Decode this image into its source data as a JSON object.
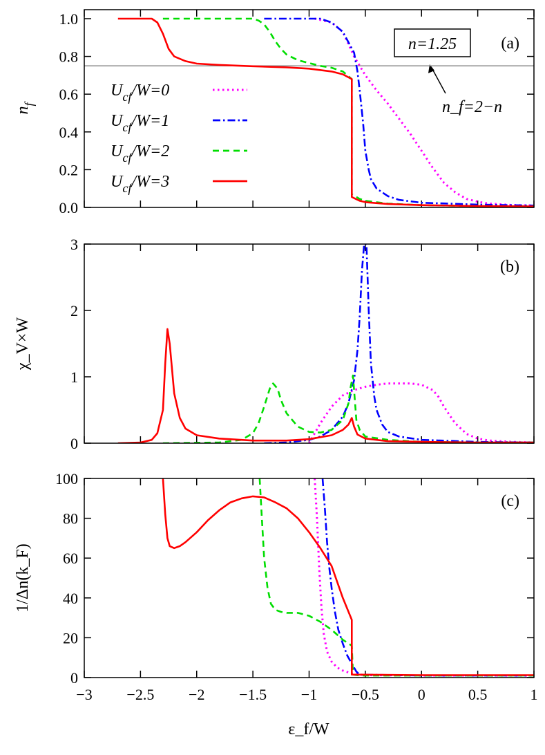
{
  "chart_data": {
    "type": "line",
    "shared_x": {
      "xlabel": "ε_f/W",
      "xlim": [
        -3,
        1
      ],
      "xticks": [
        -3,
        -2.5,
        -2,
        -1.5,
        -1,
        -0.5,
        0,
        0.5,
        1
      ],
      "xtick_labels": [
        "−3",
        "−2.5",
        "−2",
        "−1.5",
        "−1",
        "−0.5",
        "0",
        "0.5",
        "1"
      ]
    },
    "series_styles": [
      {
        "name": "U_cf/W=0",
        "color": "#ff00ff",
        "style": "dotted"
      },
      {
        "name": "U_cf/W=1",
        "color": "#0000ff",
        "style": "dash-dot"
      },
      {
        "name": "U_cf/W=2",
        "color": "#00dd00",
        "style": "dashed"
      },
      {
        "name": "U_cf/W=3",
        "color": "#ff0000",
        "style": "solid"
      }
    ],
    "legend_placement": "left",
    "panels": [
      {
        "panel_label": "(a)",
        "ylabel": "n_f",
        "ylim": [
          0,
          1
        ],
        "yticks": [
          0,
          0.2,
          0.4,
          0.6,
          0.8,
          1.0
        ],
        "ytick_labels": [
          "0.0",
          "0.2",
          "0.4",
          "0.6",
          "0.8",
          "1.0"
        ],
        "annotations": {
          "box": "n=1.25",
          "arrow_text": "n_f=2−n",
          "hline": 0.75
        },
        "series": [
          {
            "x": [
              -0.95,
              -0.8,
              -0.7,
              -0.6,
              -0.5,
              -0.4,
              -0.3,
              -0.2,
              -0.1,
              0,
              0.1,
              0.2,
              0.3,
              0.4,
              0.5,
              0.6,
              0.8,
              1.0
            ],
            "y": [
              1.0,
              0.98,
              0.93,
              0.8,
              0.7,
              0.62,
              0.55,
              0.47,
              0.39,
              0.3,
              0.21,
              0.13,
              0.08,
              0.045,
              0.03,
              0.02,
              0.013,
              0.01
            ]
          },
          {
            "x": [
              -1.4,
              -0.9,
              -0.8,
              -0.7,
              -0.6,
              -0.57,
              -0.55,
              -0.52,
              -0.5,
              -0.47,
              -0.45,
              -0.4,
              -0.3,
              -0.2,
              0,
              0.5,
              1.0
            ],
            "y": [
              1.0,
              1.0,
              0.98,
              0.93,
              0.82,
              0.72,
              0.62,
              0.45,
              0.3,
              0.2,
              0.15,
              0.1,
              0.06,
              0.04,
              0.025,
              0.015,
              0.01
            ]
          },
          {
            "x": [
              -2.3,
              -1.5,
              -1.45,
              -1.4,
              -1.35,
              -1.3,
              -1.25,
              -1.2,
              -1.1,
              -1.0,
              -0.9,
              -0.8,
              -0.7,
              -0.62,
              -0.62,
              -0.55,
              -0.5,
              -0.3,
              0,
              0.5,
              1.0
            ],
            "y": [
              1.0,
              1.0,
              0.99,
              0.97,
              0.93,
              0.88,
              0.84,
              0.81,
              0.78,
              0.765,
              0.75,
              0.74,
              0.72,
              0.68,
              0.07,
              0.045,
              0.035,
              0.02,
              0.012,
              0.007,
              0.005
            ]
          },
          {
            "x": [
              -2.7,
              -2.4,
              -2.35,
              -2.3,
              -2.25,
              -2.2,
              -2.1,
              -2.0,
              -1.8,
              -1.5,
              -1.2,
              -1.0,
              -0.8,
              -0.7,
              -0.62,
              -0.62,
              -0.55,
              -0.5,
              -0.3,
              0,
              0.5,
              1.0
            ],
            "y": [
              1.0,
              1.0,
              0.98,
              0.92,
              0.84,
              0.8,
              0.775,
              0.762,
              0.755,
              0.748,
              0.742,
              0.735,
              0.72,
              0.705,
              0.68,
              0.055,
              0.035,
              0.028,
              0.018,
              0.012,
              0.007,
              0.005
            ]
          }
        ]
      },
      {
        "panel_label": "(b)",
        "ylabel": "χ_V×W",
        "ylim": [
          0,
          3
        ],
        "yticks": [
          0,
          1,
          2,
          3
        ],
        "ytick_labels": [
          "0",
          "1",
          "2",
          "3"
        ],
        "series": [
          {
            "x": [
              -1.0,
              -0.9,
              -0.8,
              -0.7,
              -0.6,
              -0.5,
              -0.4,
              -0.3,
              -0.2,
              -0.1,
              0,
              0.1,
              0.15,
              0.2,
              0.25,
              0.3,
              0.4,
              0.5,
              0.6,
              0.8,
              1.0
            ],
            "y": [
              0.0,
              0.3,
              0.55,
              0.72,
              0.8,
              0.85,
              0.88,
              0.9,
              0.9,
              0.9,
              0.88,
              0.8,
              0.7,
              0.55,
              0.42,
              0.3,
              0.14,
              0.07,
              0.04,
              0.02,
              0.01
            ]
          },
          {
            "x": [
              -1.4,
              -1.2,
              -1.0,
              -0.9,
              -0.8,
              -0.7,
              -0.65,
              -0.6,
              -0.57,
              -0.55,
              -0.53,
              -0.51,
              -0.49,
              -0.47,
              -0.45,
              -0.42,
              -0.4,
              -0.35,
              -0.3,
              -0.2,
              0,
              0.5,
              1.0
            ],
            "y": [
              0.0,
              0.01,
              0.05,
              0.1,
              0.2,
              0.4,
              0.6,
              0.95,
              1.4,
              1.9,
              2.6,
              3.0,
              3.0,
              2.0,
              1.2,
              0.7,
              0.5,
              0.28,
              0.17,
              0.1,
              0.05,
              0.02,
              0.01
            ]
          },
          {
            "x": [
              -2.3,
              -1.8,
              -1.6,
              -1.5,
              -1.45,
              -1.4,
              -1.35,
              -1.32,
              -1.28,
              -1.25,
              -1.2,
              -1.1,
              -1.0,
              -0.9,
              -0.8,
              -0.7,
              -0.65,
              -0.63,
              -0.61,
              -0.58,
              -0.55,
              -0.5,
              -0.3,
              0,
              0.5,
              1.0
            ],
            "y": [
              0.0,
              0.01,
              0.05,
              0.15,
              0.3,
              0.55,
              0.82,
              0.9,
              0.82,
              0.65,
              0.45,
              0.25,
              0.17,
              0.16,
              0.2,
              0.35,
              0.6,
              0.85,
              1.02,
              0.35,
              0.2,
              0.1,
              0.05,
              0.02,
              0.01,
              0.01
            ]
          },
          {
            "x": [
              -2.7,
              -2.5,
              -2.4,
              -2.35,
              -2.3,
              -2.28,
              -2.26,
              -2.24,
              -2.2,
              -2.15,
              -2.1,
              -2.0,
              -1.8,
              -1.5,
              -1.2,
              -1.0,
              -0.8,
              -0.7,
              -0.65,
              -0.62,
              -0.6,
              -0.57,
              -0.5,
              -0.3,
              0,
              0.5,
              1.0
            ],
            "y": [
              0.0,
              0.01,
              0.05,
              0.15,
              0.5,
              1.2,
              1.72,
              1.5,
              0.75,
              0.38,
              0.22,
              0.12,
              0.07,
              0.04,
              0.04,
              0.06,
              0.12,
              0.2,
              0.28,
              0.38,
              0.25,
              0.13,
              0.07,
              0.03,
              0.02,
              0.01,
              0.01
            ]
          }
        ]
      },
      {
        "panel_label": "(c)",
        "ylabel": "1/Δn(k_F)",
        "ylim": [
          0,
          100
        ],
        "yticks": [
          0,
          20,
          40,
          60,
          80,
          100
        ],
        "ytick_labels": [
          "0",
          "20",
          "40",
          "60",
          "80",
          "100"
        ],
        "series": [
          {
            "x": [
              -0.95,
              -0.93,
              -0.91,
              -0.89,
              -0.87,
              -0.84,
              -0.8,
              -0.75,
              -0.7,
              -0.62,
              -0.55,
              -0.5,
              0,
              1.0
            ],
            "y": [
              100,
              80,
              55,
              35,
              22,
              13,
              8,
              5,
              3.5,
              2,
              1.5,
              1.2,
              1,
              1
            ]
          },
          {
            "x": [
              -0.88,
              -0.86,
              -0.84,
              -0.82,
              -0.8,
              -0.77,
              -0.74,
              -0.7,
              -0.66,
              -0.62,
              -0.58,
              -0.55,
              0,
              1.0
            ],
            "y": [
              100,
              85,
              68,
              55,
              45,
              33,
              24,
              17,
              11,
              7,
              3,
              1.5,
              1,
              1
            ]
          },
          {
            "x": [
              -1.44,
              -1.42,
              -1.4,
              -1.37,
              -1.34,
              -1.3,
              -1.25,
              -1.2,
              -1.1,
              -1.0,
              -0.9,
              -0.8,
              -0.7,
              -0.62,
              -0.61,
              -0.55,
              0,
              1.0
            ],
            "y": [
              100,
              80,
              60,
              45,
              37,
              34,
              33,
              32.5,
              32.5,
              31,
              28,
              24,
              19,
              16,
              1.5,
              1,
              1,
              1
            ]
          },
          {
            "x": [
              -2.3,
              -2.28,
              -2.26,
              -2.24,
              -2.2,
              -2.15,
              -2.1,
              -2.0,
              -1.9,
              -1.8,
              -1.7,
              -1.6,
              -1.5,
              -1.4,
              -1.3,
              -1.2,
              -1.1,
              -1.0,
              -0.9,
              -0.8,
              -0.7,
              -0.62,
              -0.62,
              0,
              1.0
            ],
            "y": [
              100,
              82,
              70,
              66,
              65,
              66,
              68,
              73,
              79,
              84,
              88,
              90,
              91,
              90.5,
              88,
              85,
              80,
              73,
              65,
              56,
              40,
              29,
              1.5,
              1.2,
              1.2
            ]
          }
        ]
      }
    ]
  }
}
